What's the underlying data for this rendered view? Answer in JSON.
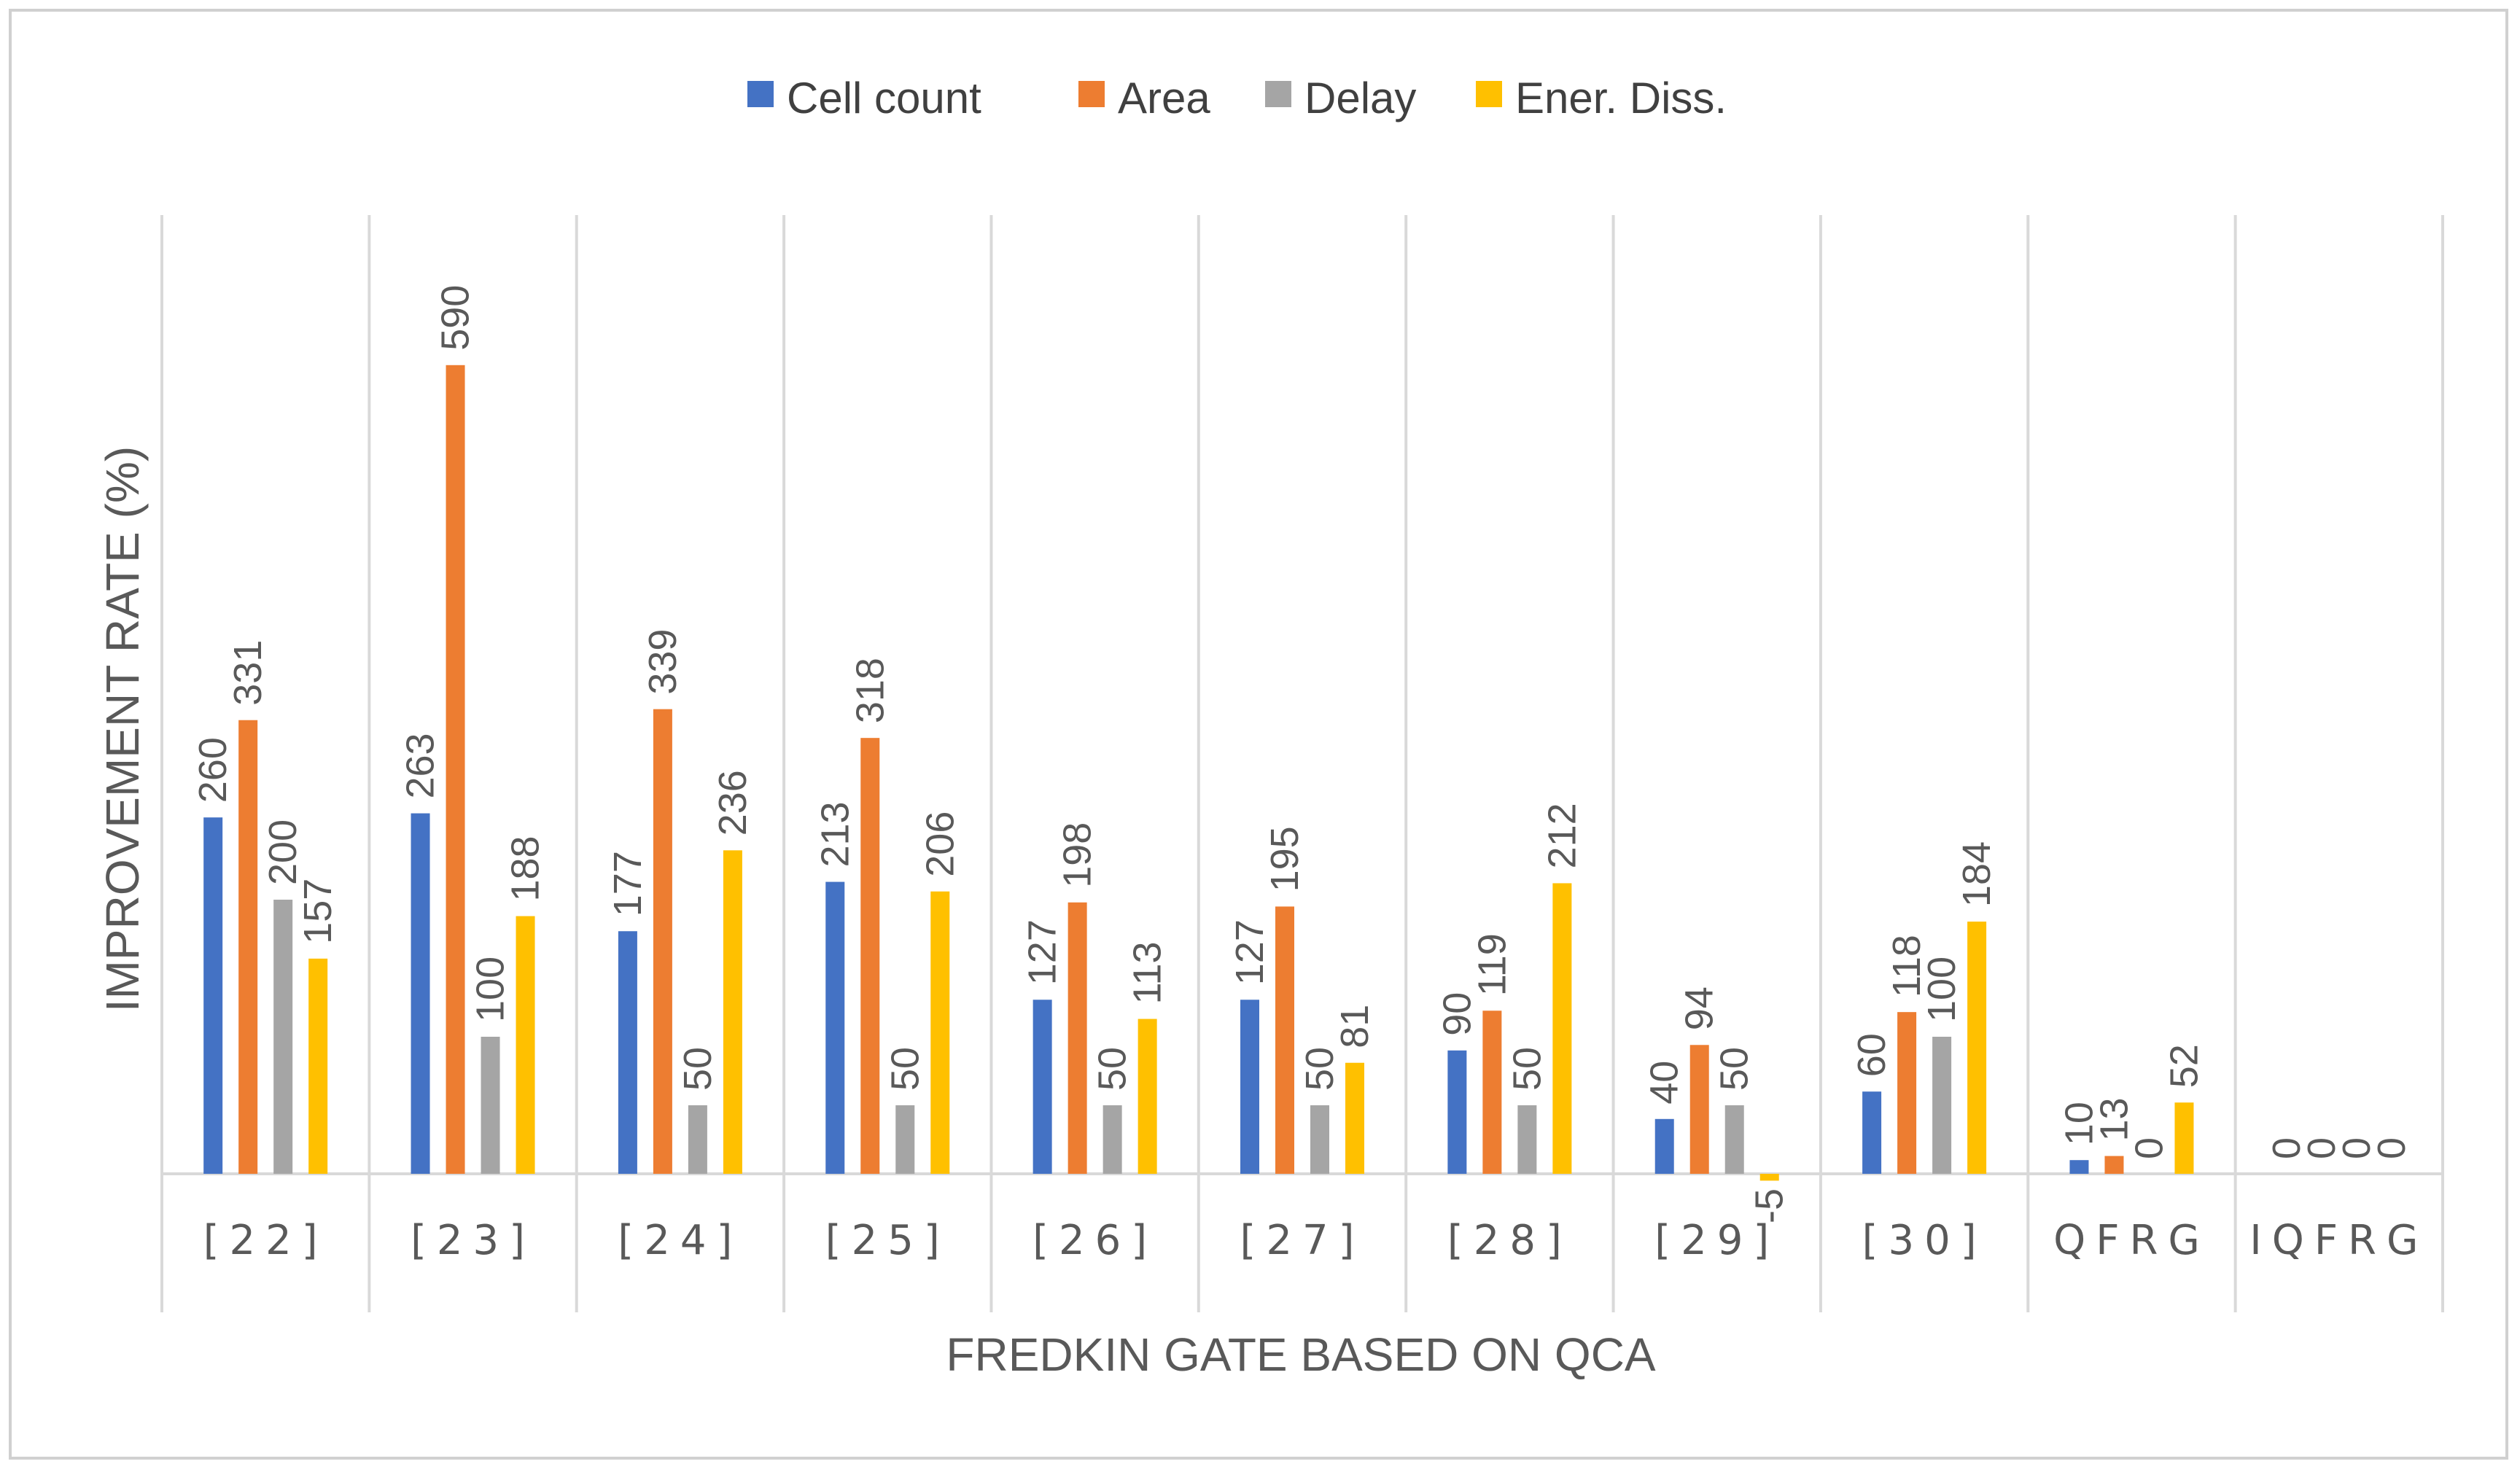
{
  "chart_data": {
    "type": "bar",
    "title": "",
    "xlabel": "FREDKIN GATE BASED ON QCA",
    "ylabel": "IMPROVEMENT RATE (%)",
    "ylim": [
      -15,
      780
    ],
    "legend_position": "top-center",
    "grid": false,
    "categories": [
      "[22]",
      "[23]",
      "[24]",
      "[25]",
      "[26]",
      "[27]",
      "[28]",
      "[29]",
      "[30]",
      "QFRG",
      "IQFRG"
    ],
    "series": [
      {
        "name": "Cell count",
        "color": "#4472C4",
        "values": [
          260,
          263,
          177,
          213,
          127,
          127,
          90,
          40,
          60,
          10,
          0
        ]
      },
      {
        "name": "Area",
        "color": "#ED7D31",
        "values": [
          331,
          590,
          339,
          318,
          198,
          195,
          119,
          94,
          118,
          13,
          0
        ]
      },
      {
        "name": "Delay",
        "color": "#A5A5A5",
        "values": [
          200,
          100,
          50,
          50,
          50,
          50,
          50,
          50,
          100,
          0,
          0
        ]
      },
      {
        "name": "Ener. Diss.",
        "color": "#FFC000",
        "values": [
          157,
          188,
          236,
          206,
          113,
          81,
          212,
          -5,
          184,
          52,
          0
        ]
      }
    ]
  }
}
